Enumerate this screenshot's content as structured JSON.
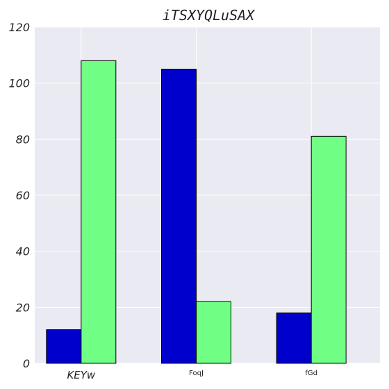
{
  "chart_data": {
    "type": "bar",
    "title": "iTSXYQLuSAX",
    "categories": [
      "KEYw",
      "FoqJ",
      "fGd"
    ],
    "series": [
      {
        "values": [
          12,
          105,
          18
        ],
        "color": "#0000cc"
      },
      {
        "values": [
          108,
          22,
          81
        ],
        "color": "#70ff84"
      }
    ],
    "ylim": [
      0,
      120
    ],
    "yticks": [
      "0",
      "20",
      "40",
      "60",
      "80",
      "100",
      "120"
    ],
    "grid": true,
    "background": "#eaeaf2"
  }
}
